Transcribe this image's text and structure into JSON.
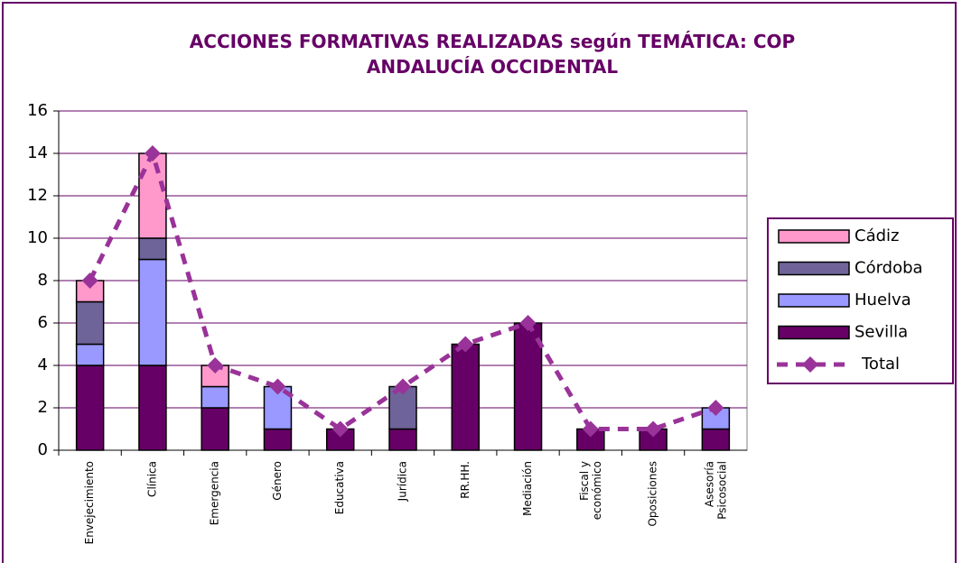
{
  "chart_data": {
    "type": "stacked_bar_line",
    "title": "ACCIONES FORMATIVAS REALIZADAS según TEMÁTICA: COP ANDALUCÍA OCCIDENTAL",
    "categories": [
      "Envejecimiento",
      "Clínica",
      "Emergencia",
      "Género",
      "Educativa",
      "Jurídica",
      "RR.HH.",
      "Mediación",
      "Fiscal y económico",
      "Oposiciones",
      "Asesoría Psicosocial"
    ],
    "series": [
      {
        "name": "Sevilla",
        "color": "#660066",
        "values": [
          4,
          4,
          2,
          1,
          1,
          1,
          5,
          6,
          1,
          1,
          1
        ]
      },
      {
        "name": "Huelva",
        "color": "#9999ff",
        "values": [
          1,
          5,
          1,
          2,
          0,
          0,
          0,
          0,
          0,
          0,
          1
        ]
      },
      {
        "name": "Córdoba",
        "color": "#6f6499",
        "values": [
          2,
          1,
          0,
          0,
          0,
          2,
          0,
          0,
          0,
          0,
          0
        ]
      },
      {
        "name": "Cádiz",
        "color": "#ff99cc",
        "values": [
          1,
          4,
          1,
          0,
          0,
          0,
          0,
          0,
          0,
          0,
          0
        ]
      },
      {
        "name": "Total",
        "color": "#993399",
        "type": "line",
        "values": [
          8,
          14,
          4,
          3,
          1,
          3,
          5,
          6,
          1,
          1,
          2
        ]
      }
    ],
    "ylim": [
      0,
      16
    ],
    "yticks": [
      0,
      2,
      4,
      6,
      8,
      10,
      12,
      14,
      16
    ],
    "grid": true,
    "legend": "right"
  }
}
